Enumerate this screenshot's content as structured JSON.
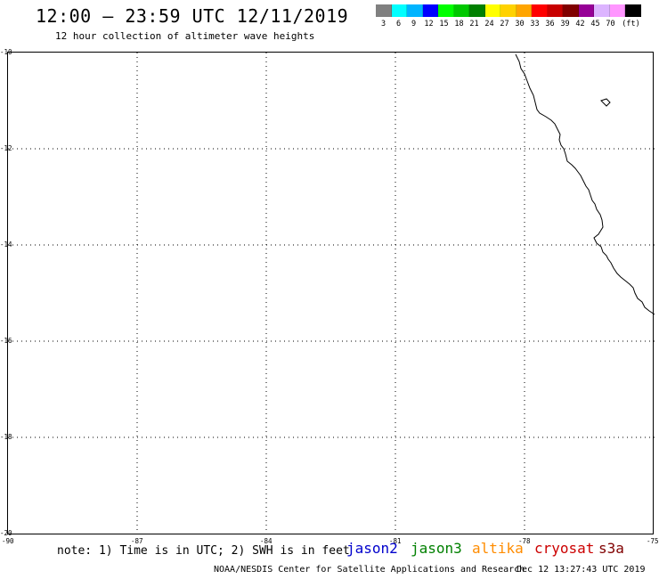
{
  "title": "12:00 — 23:59 UTC 12/11/2019",
  "subtitle": "12 hour collection of altimeter wave heights",
  "legend": {
    "colors": [
      "#808080",
      "#00ffff",
      "#00b4ff",
      "#0000ff",
      "#00ff00",
      "#00c800",
      "#008000",
      "#ffff00",
      "#ffd200",
      "#ffa500",
      "#ff0000",
      "#c80000",
      "#800000",
      "#960096",
      "#dcb4ff",
      "#ff96ff",
      "#000000"
    ],
    "labels": [
      "3",
      "6",
      "9",
      "12",
      "15",
      "18",
      "21",
      "24",
      "27",
      "30",
      "33",
      "36",
      "39",
      "42",
      "45",
      "70",
      "(ft)"
    ]
  },
  "axes": {
    "y_labels": [
      "-10",
      "-12",
      "-14",
      "-16",
      "-18",
      "-20"
    ],
    "x_labels": [
      "-90",
      "-87",
      "-84",
      "-81",
      "-78",
      "-75"
    ]
  },
  "note": "note: 1) Time is in UTC; 2) SWH is in feet",
  "satellites": [
    {
      "name": "jason2",
      "color": "#0000cc"
    },
    {
      "name": "jason3",
      "color": "#008000"
    },
    {
      "name": "altika",
      "color": "#ff8c00"
    },
    {
      "name": "cryosat",
      "color": "#cc0000"
    },
    {
      "name": "s3a",
      "color": "#800000"
    }
  ],
  "footer_left": "NOAA/NESDIS Center for Satellite Applications and Research",
  "footer_right": "Dec 12 13:27:43 UTC 2019"
}
